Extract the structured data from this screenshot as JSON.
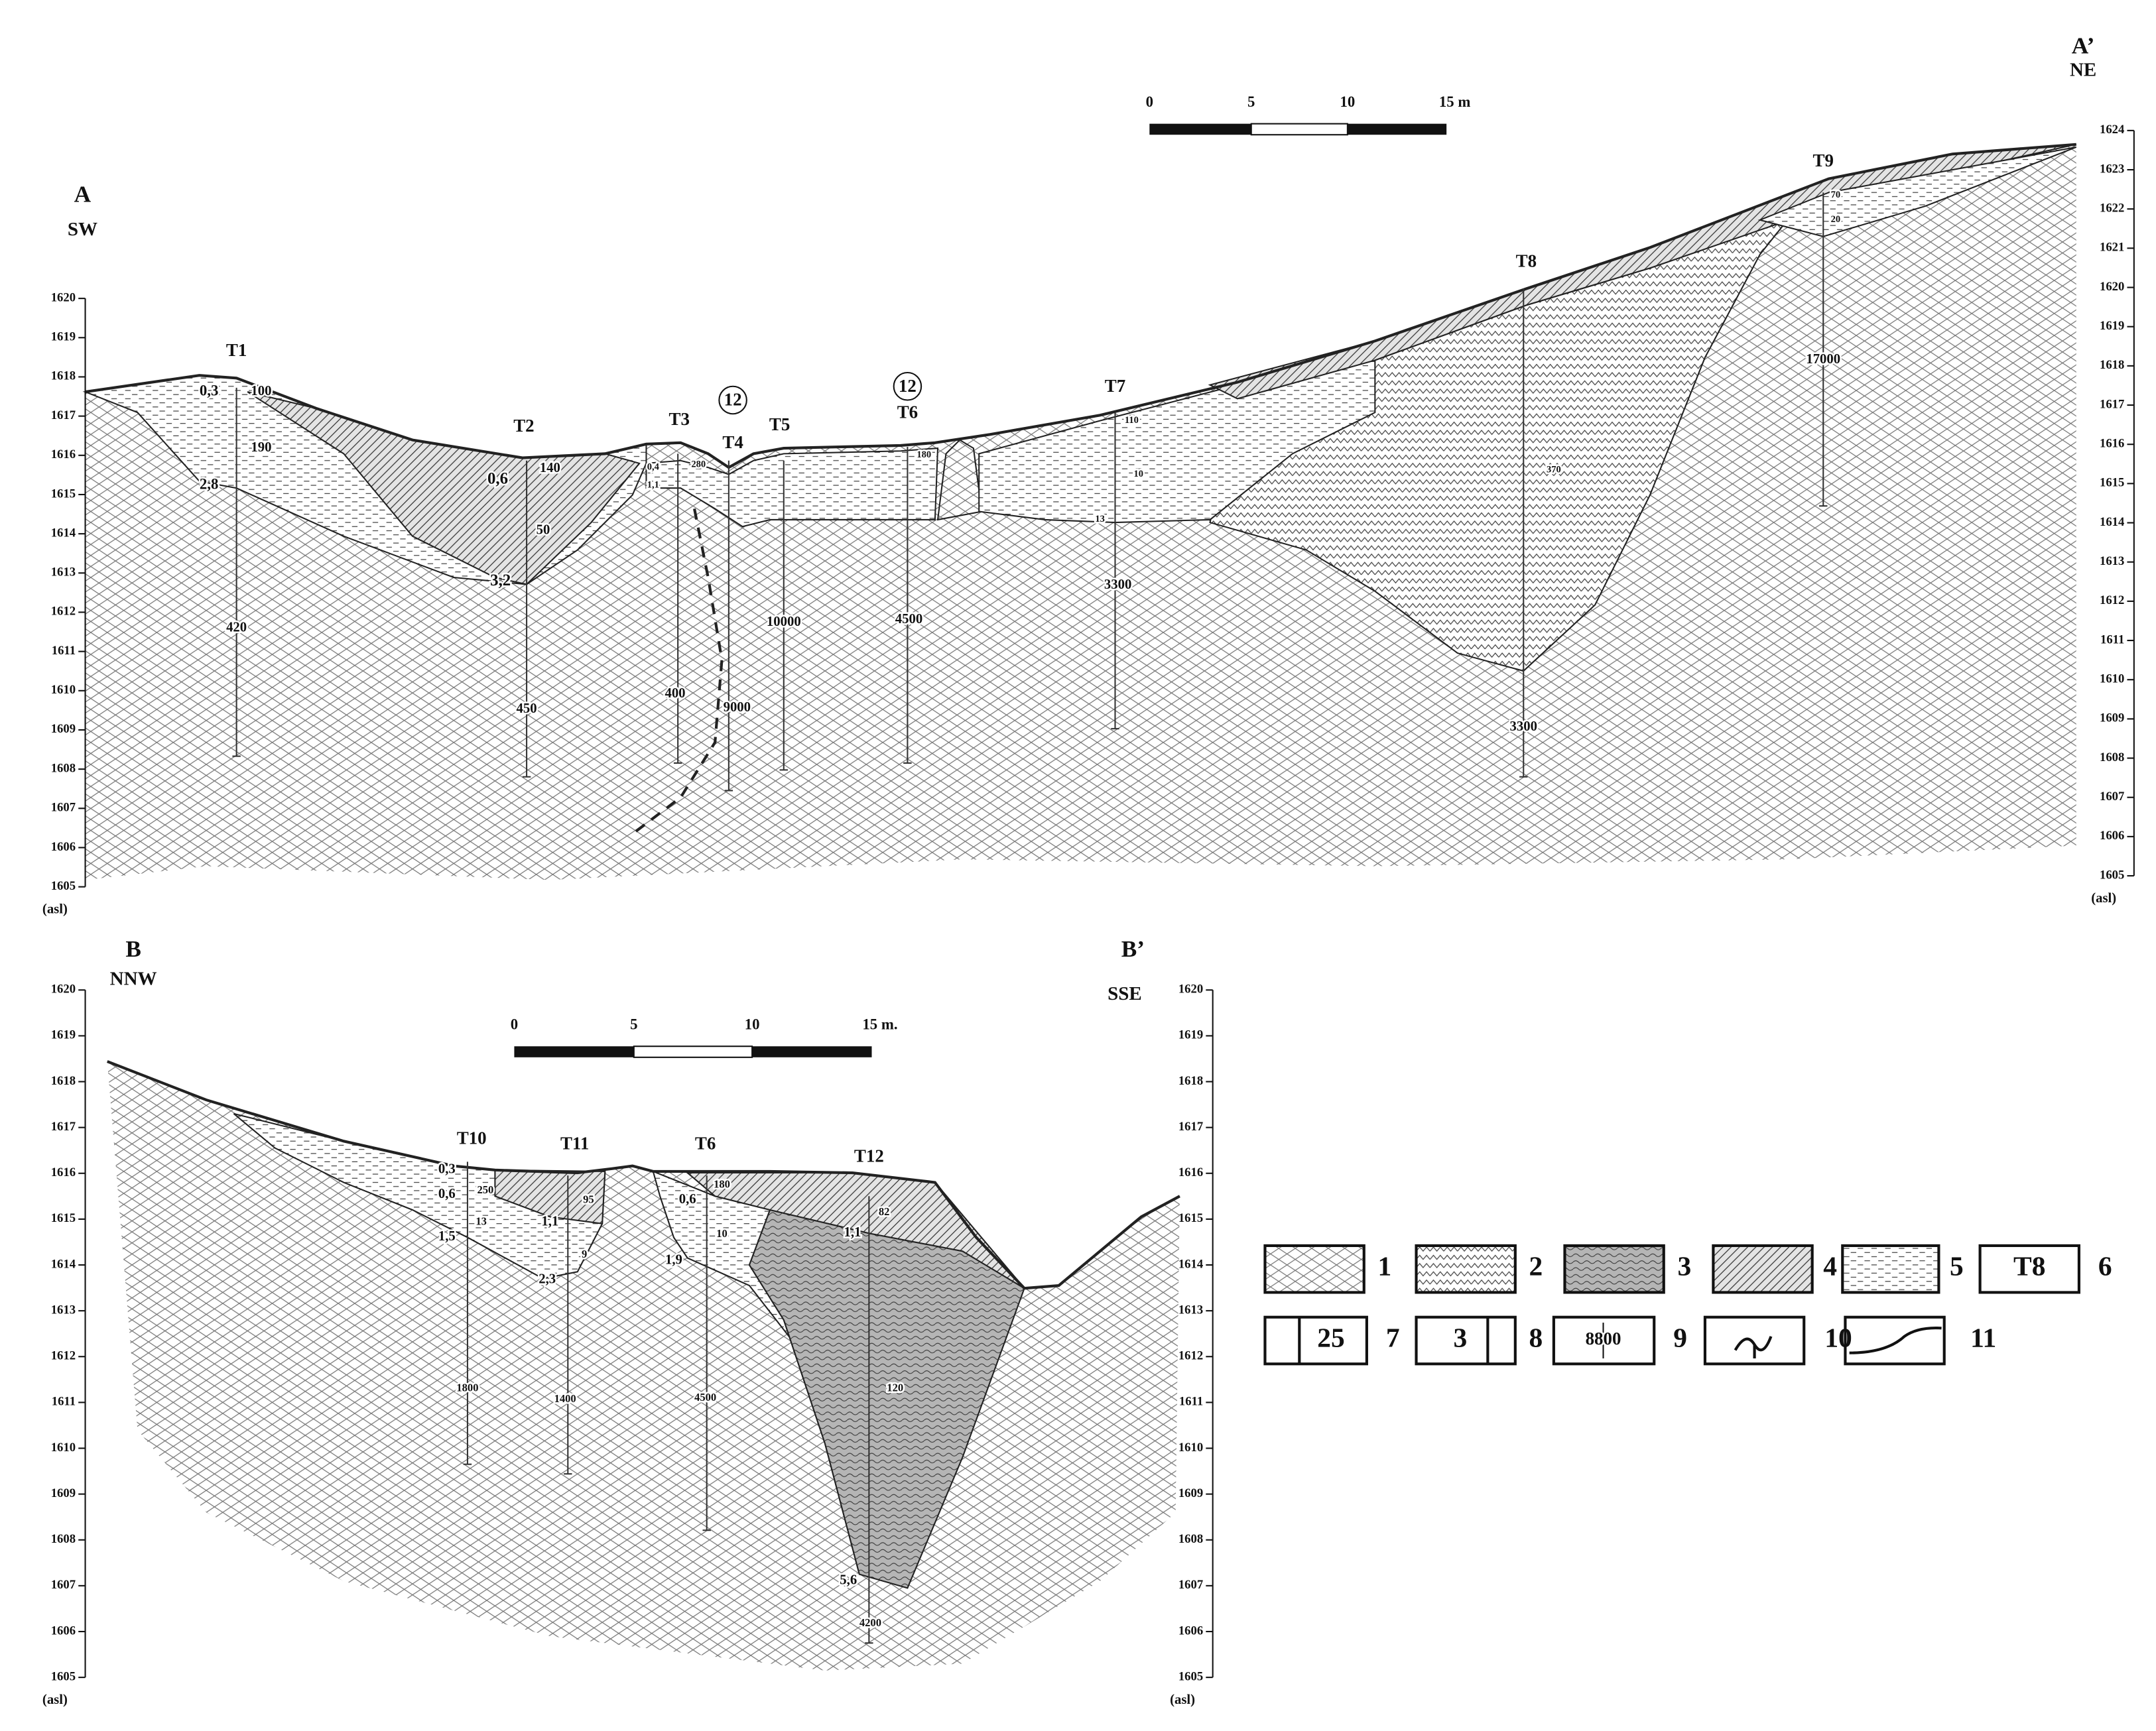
{
  "section_a": {
    "start_label": "A",
    "start_direction": "SW",
    "end_label": "A’",
    "end_direction": "NE",
    "scale_bar": [
      "0",
      "5",
      "10",
      "15 m"
    ],
    "left_axis": {
      "ticks": [
        1605,
        1606,
        1607,
        1608,
        1609,
        1610,
        1611,
        1612,
        1613,
        1614,
        1615,
        1616,
        1617,
        1618,
        1619,
        1620
      ],
      "unit": "(asl)"
    },
    "right_axis": {
      "ticks": [
        1605,
        1606,
        1607,
        1608,
        1609,
        1610,
        1611,
        1612,
        1613,
        1614,
        1615,
        1616,
        1617,
        1618,
        1619,
        1620,
        1621,
        1622,
        1623,
        1624
      ],
      "unit": "(asl)"
    },
    "trenches": [
      {
        "label": "T1",
        "notes": [
          "0,3",
          "100",
          "190",
          "2,8",
          "420"
        ]
      },
      {
        "label": "T2",
        "notes": [
          "0,6",
          "140",
          "50",
          "3,2",
          "450"
        ]
      },
      {
        "label": "T3",
        "notes": [
          "0,4",
          "280",
          "1,1",
          "400"
        ]
      },
      {
        "label": "T4",
        "marker": "12",
        "notes": [
          "9000"
        ]
      },
      {
        "label": "T5",
        "notes": [
          "10000"
        ]
      },
      {
        "label": "T6",
        "marker": "12",
        "notes": [
          "180",
          "4500"
        ]
      },
      {
        "label": "T7",
        "notes": [
          "110",
          "10",
          "13",
          "3300"
        ]
      },
      {
        "label": "T8",
        "notes": [
          "370",
          "3300"
        ]
      },
      {
        "label": "T9",
        "notes": [
          "70",
          "20",
          "17000"
        ]
      }
    ]
  },
  "section_b": {
    "start_label": "B",
    "start_direction": "NNW",
    "end_label": "B’",
    "end_direction": "SSE",
    "scale_bar": [
      "0",
      "5",
      "10",
      "15 m."
    ],
    "left_axis": {
      "ticks": [
        1605,
        1606,
        1607,
        1608,
        1609,
        1610,
        1611,
        1612,
        1613,
        1614,
        1615,
        1616,
        1617,
        1618,
        1619,
        1620
      ],
      "unit": "(asl)"
    },
    "right_axis": {
      "ticks": [
        1605,
        1606,
        1607,
        1608,
        1609,
        1610,
        1611,
        1612,
        1613,
        1614,
        1615,
        1616,
        1617,
        1618,
        1619,
        1620
      ],
      "unit": "(asl)"
    },
    "trenches": [
      {
        "label": "T10",
        "notes": [
          "0,3",
          "0,6",
          "250",
          "13",
          "1,5",
          "1800"
        ]
      },
      {
        "label": "T11",
        "notes": [
          "95",
          "1,1",
          "9",
          "2,3",
          "1400"
        ]
      },
      {
        "label": "T6",
        "notes": [
          "180",
          "0,6",
          "10",
          "1,9",
          "4500"
        ]
      },
      {
        "label": "T12",
        "notes": [
          "82",
          "1,1",
          "120",
          "5,6",
          "4200"
        ]
      }
    ]
  },
  "legend": [
    {
      "number": "1"
    },
    {
      "number": "2"
    },
    {
      "number": "3"
    },
    {
      "number": "4"
    },
    {
      "number": "5"
    },
    {
      "number": "6",
      "symbol": "T8"
    },
    {
      "number": "7",
      "symbol": "25"
    },
    {
      "number": "8",
      "symbol": "3"
    },
    {
      "number": "9",
      "symbol": "8800"
    },
    {
      "number": "10"
    },
    {
      "number": "11"
    }
  ]
}
